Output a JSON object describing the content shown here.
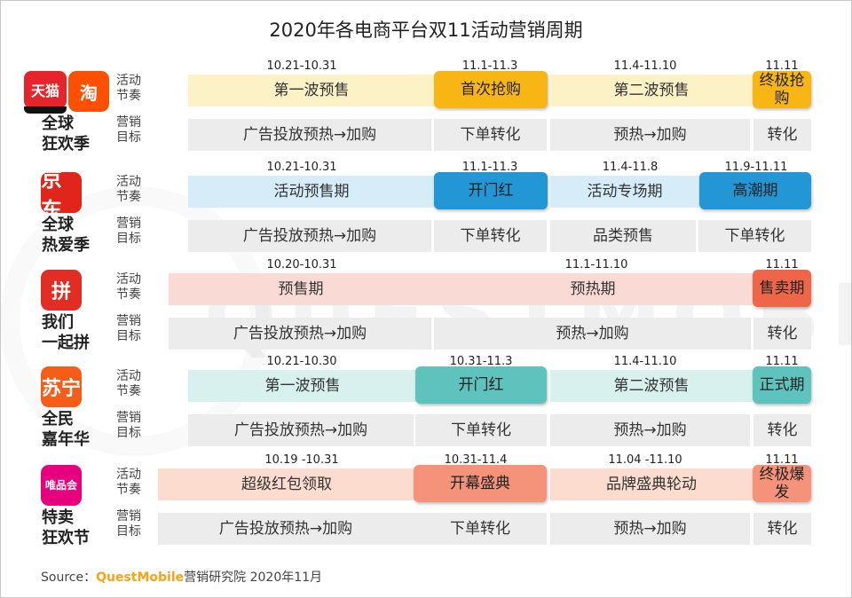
{
  "title": "2020年各电商平台双11活动营销周期",
  "watermark": "QUESTMOBILE",
  "row_labels": {
    "rhythm": [
      "活动",
      "节奏"
    ],
    "goal": [
      "营销",
      "目标"
    ]
  },
  "source": {
    "prefix": "Source：",
    "brand": "QuestMobile",
    "suffix": "营销研究院 2020年11月"
  },
  "chart_data": {
    "type": "table",
    "title": "2020年各电商平台双11活动营销周期",
    "platforms": [
      {
        "name": [
          "全球",
          "狂欢季"
        ],
        "logos": [
          {
            "label": "天猫",
            "color": "#e5242b"
          },
          {
            "label": "淘",
            "color": "#ff5000"
          }
        ],
        "dates": [
          "10.21-10.31",
          "11.1-11.3",
          "11.4-11.10",
          "11.11"
        ],
        "rhythm": [
          "第一波预售",
          "首次抢购",
          "第二波预售",
          "终极抢购"
        ],
        "goal": [
          "广告投放预热→加购",
          "下单转化",
          "预热→加购",
          "转化"
        ]
      },
      {
        "name": [
          "全球",
          "热爱季"
        ],
        "logos": [
          {
            "label": "京东",
            "color": "#e1251b"
          }
        ],
        "dates": [
          "10.21-10.31",
          "11.1-11.3",
          "11.4-11.8",
          "11.9-11.11"
        ],
        "rhythm": [
          "活动预售期",
          "开门红",
          "活动专场期",
          "高潮期"
        ],
        "goal": [
          "广告投放预热→加购",
          "下单转化",
          "品类预售",
          "下单转化"
        ]
      },
      {
        "name": [
          "我们",
          "一起拼"
        ],
        "logos": [
          {
            "label": "拼",
            "color": "#e02e24"
          }
        ],
        "dates": [
          "10.20-10.31",
          "11.1-11.10",
          "11.11"
        ],
        "rhythm": [
          "预售期",
          "预热期",
          "售卖期"
        ],
        "goal": [
          "广告投放预热→加购",
          "预热→加购",
          "转化"
        ]
      },
      {
        "name": [
          "全民",
          "嘉年华"
        ],
        "logos": [
          {
            "label": "苏宁",
            "color": "#f55d18"
          }
        ],
        "dates": [
          "10.21-10.30",
          "10.31-11.3",
          "11.4-11.10",
          "11.11"
        ],
        "rhythm": [
          "第一波预售",
          "开门红",
          "第二波预售",
          "正式期"
        ],
        "goal": [
          "广告投放预热→加购",
          "下单转化",
          "预热→加购",
          "转化"
        ]
      },
      {
        "name": [
          "特卖",
          "狂欢节"
        ],
        "logos": [
          {
            "label": "唯品会",
            "color": "#e6007e"
          }
        ],
        "dates": [
          "10.19 -10.31",
          "10.31-11.4",
          "11.04 -11.10",
          "11.11"
        ],
        "rhythm": [
          "超级红包领取",
          "开幕盛典",
          "品牌盛典轮动",
          "终极爆发"
        ],
        "goal": [
          "广告投放预热→加购",
          "下单转化",
          "预热→加购",
          "转化"
        ]
      }
    ],
    "colors": {
      "tmall": {
        "light": "#fdf1c6",
        "hl": "#f8b614"
      },
      "jd": {
        "light": "#d6ecf8",
        "hl": "#2396d6"
      },
      "pdd": {
        "light": "#fadad5",
        "hl": "#ee6548"
      },
      "suning": {
        "light": "#d9f1ee",
        "hl": "#5ec3bd"
      },
      "vip": {
        "light": "#fddcd0",
        "hl": "#f49379"
      },
      "goal": "#ececec"
    }
  }
}
